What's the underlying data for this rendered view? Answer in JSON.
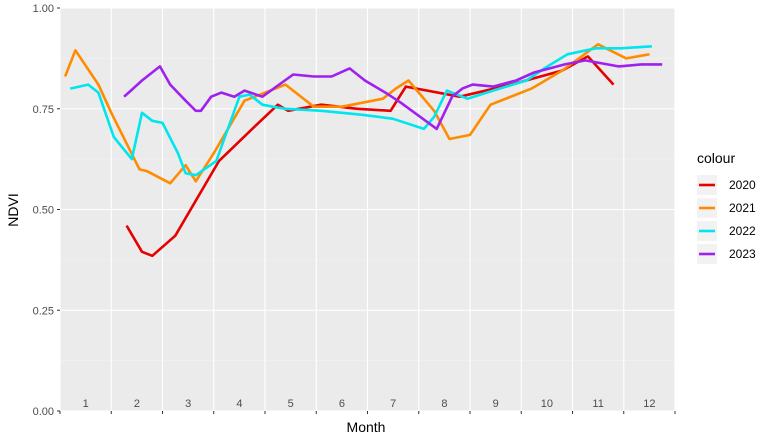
{
  "chart_data": {
    "type": "line",
    "title": "",
    "xlabel": "Month",
    "ylabel": "NDVI",
    "xlim": [
      1,
      13
    ],
    "ylim": [
      0,
      1
    ],
    "yticks": [
      "0.00",
      "0.25",
      "0.50",
      "0.75",
      "1.00"
    ],
    "yticks_values": [
      0,
      0.25,
      0.5,
      0.75,
      1.0
    ],
    "month_labels": [
      "1",
      "2",
      "3",
      "4",
      "5",
      "6",
      "7",
      "8",
      "9",
      "10",
      "11",
      "12"
    ],
    "grid": true,
    "legend_title": "colour",
    "legend_position": "right",
    "series": [
      {
        "name": "2020",
        "color": "#E60000",
        "x": [
          2.3,
          2.6,
          2.8,
          3.25,
          4.1,
          4.75,
          5.25,
          5.45,
          6.1,
          6.8,
          7.45,
          7.6,
          7.75,
          8.8,
          9.8,
          10.8,
          11.3,
          11.8
        ],
        "y": [
          0.46,
          0.395,
          0.385,
          0.435,
          0.62,
          0.7,
          0.76,
          0.745,
          0.76,
          0.75,
          0.745,
          0.775,
          0.805,
          0.78,
          0.81,
          0.845,
          0.88,
          0.81
        ]
      },
      {
        "name": "2021",
        "color": "#FF8C00",
        "x": [
          1.1,
          1.3,
          1.75,
          2.0,
          2.55,
          2.7,
          3.15,
          3.45,
          3.65,
          4.0,
          4.6,
          5.4,
          5.95,
          6.5,
          7.3,
          7.55,
          7.8,
          8.3,
          8.6,
          9.0,
          9.4,
          10.2,
          10.8,
          11.5,
          12.05,
          12.5
        ],
        "y": [
          0.83,
          0.895,
          0.81,
          0.74,
          0.6,
          0.595,
          0.565,
          0.61,
          0.57,
          0.64,
          0.77,
          0.81,
          0.755,
          0.755,
          0.775,
          0.8,
          0.82,
          0.745,
          0.675,
          0.685,
          0.76,
          0.8,
          0.845,
          0.91,
          0.875,
          0.885
        ]
      },
      {
        "name": "2022",
        "color": "#00E5EE",
        "x": [
          1.2,
          1.55,
          1.75,
          2.05,
          2.4,
          2.6,
          2.8,
          3.0,
          3.3,
          3.45,
          3.65,
          4.05,
          4.5,
          4.7,
          4.95,
          5.15,
          5.4,
          6.1,
          6.9,
          7.5,
          8.1,
          8.3,
          8.55,
          8.95,
          9.45,
          10.1,
          10.45,
          10.9,
          11.45,
          11.95,
          12.55
        ],
        "y": [
          0.8,
          0.81,
          0.79,
          0.68,
          0.625,
          0.74,
          0.72,
          0.715,
          0.64,
          0.59,
          0.585,
          0.62,
          0.78,
          0.785,
          0.76,
          0.755,
          0.75,
          0.745,
          0.735,
          0.725,
          0.7,
          0.73,
          0.795,
          0.775,
          0.795,
          0.82,
          0.85,
          0.885,
          0.9,
          0.9,
          0.905
        ]
      },
      {
        "name": "2023",
        "color": "#A020F0",
        "x": [
          2.25,
          2.6,
          2.95,
          3.15,
          3.45,
          3.65,
          3.75,
          3.95,
          4.15,
          4.4,
          4.6,
          4.95,
          5.55,
          5.95,
          6.3,
          6.65,
          6.95,
          7.35,
          7.65,
          8.35,
          8.65,
          8.85,
          9.05,
          9.45,
          9.9,
          10.25,
          10.85,
          11.25,
          11.9,
          12.35,
          12.75
        ],
        "y": [
          0.78,
          0.82,
          0.855,
          0.81,
          0.77,
          0.745,
          0.745,
          0.78,
          0.79,
          0.78,
          0.795,
          0.78,
          0.835,
          0.83,
          0.83,
          0.85,
          0.82,
          0.79,
          0.765,
          0.7,
          0.78,
          0.8,
          0.81,
          0.805,
          0.82,
          0.84,
          0.86,
          0.87,
          0.855,
          0.86,
          0.86
        ]
      }
    ]
  }
}
